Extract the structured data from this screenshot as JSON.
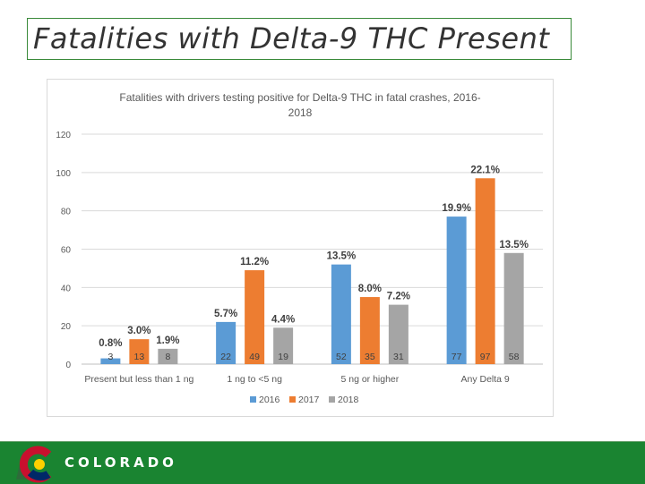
{
  "slide": {
    "title": "Fatalities with Delta-9 THC Present"
  },
  "footer": {
    "brand": "COLORADO",
    "background": "#1a8431"
  },
  "chart_data": {
    "type": "bar",
    "title": "Fatalities with drivers testing positive for Delta-9 THC in fatal crashes, 2016-2018",
    "title_lines": [
      "Fatalities with drivers testing positive for Delta-9 THC in fatal crashes, 2016-",
      "2018"
    ],
    "categories": [
      "Present but less than 1 ng",
      "1 ng to <5 ng",
      "5 ng or higher",
      "Any Delta 9"
    ],
    "series": [
      {
        "name": "2016",
        "color": "#5b9bd5",
        "values": [
          3,
          22,
          52,
          77
        ],
        "percent_labels": [
          "0.8%",
          "5.7%",
          "13.5%",
          "19.9%"
        ]
      },
      {
        "name": "2017",
        "color": "#ed7d31",
        "values": [
          13,
          49,
          35,
          97
        ],
        "percent_labels": [
          "3.0%",
          "11.2%",
          "8.0%",
          "22.1%"
        ]
      },
      {
        "name": "2018",
        "color": "#a5a5a5",
        "values": [
          8,
          19,
          31,
          58
        ],
        "percent_labels": [
          "1.9%",
          "4.4%",
          "7.2%",
          "13.5%"
        ]
      }
    ],
    "ylim": [
      0,
      120
    ],
    "yticks": [
      0,
      20,
      40,
      60,
      80,
      100,
      120
    ],
    "grid": true,
    "legend": "bottom"
  }
}
